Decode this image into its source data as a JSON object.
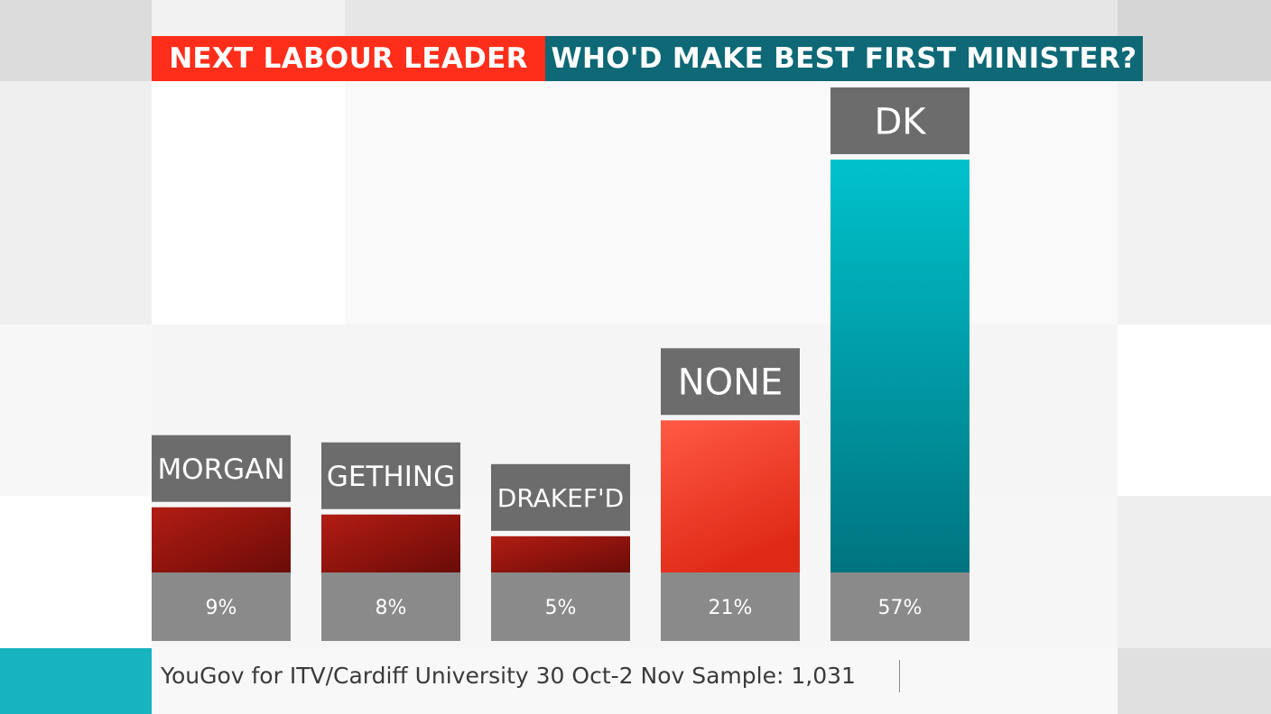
{
  "header": {
    "left_title": "NEXT LABOUR LEADER",
    "right_title": "WHO'D MAKE BEST FIRST MINISTER?",
    "left_color": "#ff2e1a",
    "right_color": "#0e6875"
  },
  "chart_data": {
    "type": "bar",
    "categories": [
      "MORGAN",
      "GETHING",
      "DRAKEF'D",
      "NONE",
      "DK"
    ],
    "values": [
      9,
      8,
      5,
      21,
      57
    ],
    "value_labels": [
      "9%",
      "8%",
      "5%",
      "21%",
      "57%"
    ],
    "ylim": [
      0,
      60
    ],
    "bar_colors": [
      "#9c1710",
      "#9c1710",
      "#9c1710",
      "#ff3a27",
      "#0fb1bd"
    ]
  },
  "footer": {
    "source": "YouGov for ITV/Cardiff University 30 Oct-2 Nov Sample: 1,031",
    "accent_color": "#17b3bf"
  }
}
